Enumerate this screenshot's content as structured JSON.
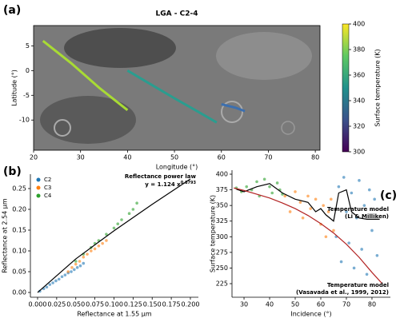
{
  "chart_data": [
    {
      "type": "line",
      "panel_label": "(a)",
      "title": "LGA - C2-4",
      "x_label": "Longitude (°)",
      "y_label": "Latitude (°)",
      "xlim": [
        20,
        81
      ],
      "ylim": [
        -16.1,
        9.1
      ],
      "xticks": [
        20,
        30,
        40,
        50,
        60,
        70,
        80
      ],
      "yticks": [
        -10,
        -5,
        0,
        5
      ],
      "series": [
        {
          "color": "#a8db34",
          "x": [
            22,
            28,
            34,
            40
          ],
          "y": [
            6,
            1.5,
            -3.5,
            -8
          ]
        },
        {
          "color": "#2a9d8f",
          "x": [
            40,
            45,
            50,
            55,
            59
          ],
          "y": [
            0,
            -2.8,
            -5.6,
            -8.3,
            -10.5
          ]
        },
        {
          "color": "#3b6fb0",
          "x": [
            60,
            63,
            65
          ],
          "y": [
            -6.8,
            -7.5,
            -8.2
          ]
        }
      ],
      "colorbar": {
        "label": "Surface temperature (K)",
        "lim": [
          300,
          400
        ],
        "ticks": [
          300,
          320,
          340,
          360,
          380,
          400
        ],
        "colors": [
          "#440154",
          "#3b528b",
          "#21918c",
          "#5ec962",
          "#fde725"
        ]
      }
    },
    {
      "type": "scatter",
      "panel_label": "(b)",
      "x_label": "Reflectance at 1.55 µm",
      "y_label": "Reflectance at 2.54 µm",
      "xlim": [
        -0.0094,
        0.2105
      ],
      "ylim": [
        -0.0115,
        0.2846
      ],
      "xticks": [
        {
          "value": 0,
          "label": "0.000"
        },
        {
          "value": 0.025,
          "label": "0.025"
        },
        {
          "value": 0.05,
          "label": "0.050"
        },
        {
          "value": 0.075,
          "label": "0.075"
        },
        {
          "value": 0.1,
          "label": "0.100"
        },
        {
          "value": 0.125,
          "label": "0.125"
        },
        {
          "value": 0.15,
          "label": "0.150"
        },
        {
          "value": 0.175,
          "label": "0.175"
        },
        {
          "value": 0.2,
          "label": "0.200"
        }
      ],
      "yticks": [
        {
          "value": 0,
          "label": "0.00"
        },
        {
          "value": 0.05,
          "label": "0.05"
        },
        {
          "value": 0.1,
          "label": "0.10"
        },
        {
          "value": 0.15,
          "label": "0.15"
        },
        {
          "value": 0.2,
          "label": "0.20"
        },
        {
          "value": 0.25,
          "label": "0.25"
        }
      ],
      "legend": "upper left",
      "series": [
        {
          "name": "C2",
          "color": "#1f77b4",
          "x": [
            0.003,
            0.008,
            0.012,
            0.016,
            0.02,
            0.024,
            0.028,
            0.032,
            0.036,
            0.04,
            0.044,
            0.048,
            0.052,
            0.056,
            0.06
          ],
          "y": [
            0.003,
            0.009,
            0.013,
            0.019,
            0.023,
            0.028,
            0.032,
            0.038,
            0.042,
            0.047,
            0.05,
            0.055,
            0.06,
            0.064,
            0.07
          ]
        },
        {
          "name": "C3",
          "color": "#ff7f0e",
          "x": [
            0.04,
            0.045,
            0.05,
            0.055,
            0.06,
            0.065,
            0.07,
            0.075,
            0.08,
            0.085,
            0.09
          ],
          "y": [
            0.05,
            0.06,
            0.068,
            0.075,
            0.085,
            0.092,
            0.1,
            0.105,
            0.112,
            0.118,
            0.125
          ]
        },
        {
          "name": "C4",
          "color": "#2ca02c",
          "x": [
            0.05,
            0.06,
            0.07,
            0.075,
            0.08,
            0.09,
            0.1,
            0.105,
            0.11,
            0.12,
            0.125,
            0.13
          ],
          "y": [
            0.075,
            0.092,
            0.108,
            0.118,
            0.125,
            0.14,
            0.155,
            0.165,
            0.175,
            0.19,
            0.2,
            0.215
          ]
        }
      ],
      "fit": {
        "title": "Reflectance power law",
        "formula": "y = 1.124 x",
        "exponent": "0.8793",
        "color": "#000000",
        "x": [
          0,
          0.05,
          0.1,
          0.15,
          0.2
        ],
        "y": [
          0,
          0.0807,
          0.1484,
          0.212,
          0.273
        ]
      }
    },
    {
      "type": "scatter",
      "panel_label": "(c)",
      "x_label": "Incidence (°)",
      "y_label": "Surface temperature (K)",
      "xlim": [
        25.3,
        87.2
      ],
      "ylim": [
        203.3,
        406.4
      ],
      "xticks": [
        30,
        40,
        50,
        60,
        70,
        80
      ],
      "yticks": [
        225,
        250,
        275,
        300,
        325,
        350,
        375,
        400
      ],
      "series": [
        {
          "color": "#2ca02c",
          "x": [
            27,
            29,
            31,
            33,
            35,
            36,
            38,
            40,
            41,
            43,
            44,
            45
          ],
          "y": [
            378,
            372,
            380,
            375,
            388,
            365,
            392,
            380,
            370,
            386,
            375,
            368
          ]
        },
        {
          "color": "#ff7f0e",
          "x": [
            46,
            48,
            50,
            52,
            53,
            55,
            56,
            58,
            60,
            61,
            62,
            63,
            64,
            65
          ],
          "y": [
            365,
            340,
            372,
            355,
            330,
            365,
            345,
            360,
            320,
            350,
            300,
            340,
            360,
            310
          ]
        },
        {
          "color": "#1f77b4",
          "x": [
            66,
            67,
            68,
            69,
            70,
            71,
            72,
            73,
            74,
            75,
            76,
            77,
            78,
            79,
            80,
            81,
            82
          ],
          "y": [
            300,
            380,
            260,
            395,
            340,
            290,
            370,
            250,
            330,
            390,
            280,
            350,
            240,
            375,
            310,
            360,
            270
          ]
        }
      ],
      "models": [
        {
          "label": [
            "Temperature model",
            "(Li & Milliken)"
          ],
          "color": "#000000",
          "x": [
            27,
            30,
            35,
            40,
            45,
            50,
            55,
            58,
            60,
            62,
            65,
            67,
            70,
            72,
            75,
            78,
            80,
            83
          ],
          "y": [
            376,
            372,
            380,
            385,
            370,
            360,
            355,
            340,
            345,
            335,
            325,
            370,
            375,
            340,
            330,
            328,
            328,
            328
          ]
        },
        {
          "label": [
            "Temperature model",
            "(Vasavada et al., 1999, 2012)"
          ],
          "color": "#b22222",
          "x": [
            26,
            30,
            35,
            40,
            45,
            50,
            55,
            60,
            65,
            70,
            75,
            80,
            84
          ],
          "y": [
            378,
            374,
            368,
            362,
            354,
            345,
            334,
            321,
            306,
            288,
            267,
            243,
            225
          ]
        }
      ]
    }
  ]
}
